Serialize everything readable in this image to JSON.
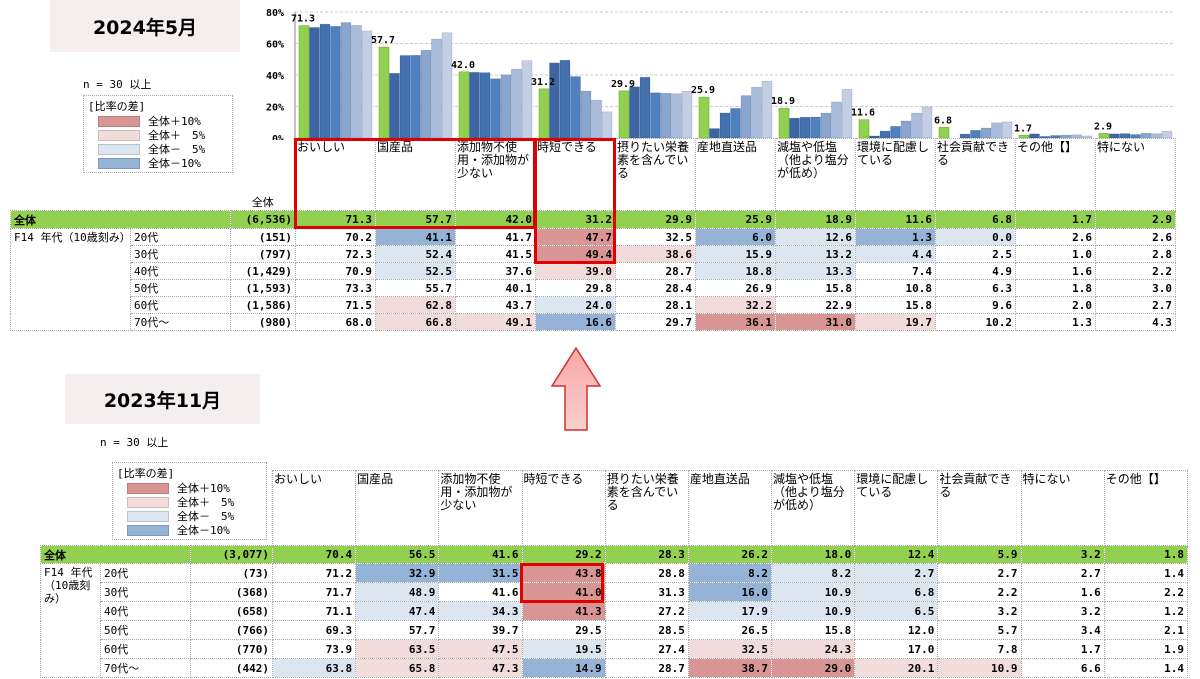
{
  "colors": {
    "plus10": "#d99594",
    "plus5": "#f2dcdb",
    "minus5": "#dce6f1",
    "minus10": "#95b3d7",
    "total": "#92d050",
    "highlight": "#e00000"
  },
  "legend": {
    "title": "[比率の差]",
    "items": [
      "全体＋10%",
      "全体＋　5%",
      "全体－　5%",
      "全体－10%"
    ]
  },
  "n_note": "n = 30 以上",
  "arrow_icon": "up-arrow",
  "chart_data": [
    {
      "type": "bar",
      "title": "2024年5月",
      "ylim": [
        0,
        80
      ],
      "yticks": [
        "0%",
        "20%",
        "40%",
        "60%",
        "80%"
      ],
      "grid": true,
      "total_header": "全体",
      "group_label": "F14 年代（10歳刻み）",
      "categories": [
        "おいしい",
        "国産品",
        "添加物不使用・添加物が少ない",
        "時短できる",
        "摂りたい栄養素を含んでいる",
        "産地直送品",
        "減塩や低塩（他より塩分が低め）",
        "環境に配慮している",
        "社会貢献できる",
        "その他【】",
        "特にない"
      ],
      "total": {
        "label": "全体",
        "n": "(6,536)",
        "values": [
          71.3,
          57.7,
          42.0,
          31.2,
          29.9,
          25.9,
          18.9,
          11.6,
          6.8,
          1.7,
          2.9
        ]
      },
      "series": [
        {
          "name": "20代",
          "n": "(151)",
          "values": [
            70.2,
            41.1,
            41.7,
            47.7,
            32.5,
            6.0,
            12.6,
            1.3,
            0.0,
            2.6,
            2.6
          ]
        },
        {
          "name": "30代",
          "n": "(797)",
          "values": [
            72.3,
            52.4,
            41.5,
            49.4,
            38.6,
            15.9,
            13.2,
            4.4,
            2.5,
            1.0,
            2.8
          ]
        },
        {
          "name": "40代",
          "n": "(1,429)",
          "values": [
            70.9,
            52.5,
            37.6,
            39.0,
            28.7,
            18.8,
            13.3,
            7.4,
            4.9,
            1.6,
            2.2
          ]
        },
        {
          "name": "50代",
          "n": "(1,593)",
          "values": [
            73.3,
            55.7,
            40.1,
            29.8,
            28.4,
            26.9,
            15.8,
            10.8,
            6.3,
            1.8,
            3.0
          ]
        },
        {
          "name": "60代",
          "n": "(1,586)",
          "values": [
            71.5,
            62.8,
            43.7,
            24.0,
            28.1,
            32.2,
            22.9,
            15.8,
            9.6,
            2.0,
            2.7
          ]
        },
        {
          "name": "70代～",
          "n": "(980)",
          "values": [
            68.0,
            66.8,
            49.1,
            16.6,
            29.7,
            36.1,
            31.0,
            19.7,
            10.2,
            1.3,
            4.3
          ]
        }
      ]
    },
    {
      "type": "table",
      "title": "2023年11月",
      "group_label": "F14 年代（10歳刻み）",
      "categories": [
        "おいしい",
        "国産品",
        "添加物不使用・添加物が少ない",
        "時短できる",
        "摂りたい栄養素を含んでいる",
        "産地直送品",
        "減塩や低塩（他より塩分が低め）",
        "環境に配慮している",
        "社会貢献できる",
        "特にない",
        "その他【】"
      ],
      "total": {
        "label": "全体",
        "n": "(3,077)",
        "values": [
          70.4,
          56.5,
          41.6,
          29.2,
          28.3,
          26.2,
          18.0,
          12.4,
          5.9,
          3.2,
          1.8
        ]
      },
      "series": [
        {
          "name": "20代",
          "n": "(73)",
          "values": [
            71.2,
            32.9,
            31.5,
            43.8,
            28.8,
            8.2,
            8.2,
            2.7,
            2.7,
            2.7,
            1.4
          ]
        },
        {
          "name": "30代",
          "n": "(368)",
          "values": [
            71.7,
            48.9,
            41.6,
            41.0,
            31.3,
            16.0,
            10.9,
            6.8,
            2.2,
            1.6,
            2.2
          ]
        },
        {
          "name": "40代",
          "n": "(658)",
          "values": [
            71.1,
            47.4,
            34.3,
            41.3,
            27.2,
            17.9,
            10.9,
            6.5,
            3.2,
            3.2,
            1.2
          ]
        },
        {
          "name": "50代",
          "n": "(766)",
          "values": [
            69.3,
            57.7,
            39.7,
            29.5,
            28.5,
            26.5,
            15.8,
            12.0,
            5.7,
            3.4,
            2.1
          ]
        },
        {
          "name": "60代",
          "n": "(770)",
          "values": [
            73.9,
            63.5,
            47.5,
            19.5,
            27.4,
            32.5,
            24.3,
            17.0,
            7.8,
            1.7,
            1.9
          ]
        },
        {
          "name": "70代～",
          "n": "(442)",
          "values": [
            63.8,
            65.8,
            47.3,
            14.9,
            28.7,
            38.7,
            29.0,
            20.1,
            10.9,
            6.6,
            1.4
          ]
        }
      ]
    }
  ]
}
